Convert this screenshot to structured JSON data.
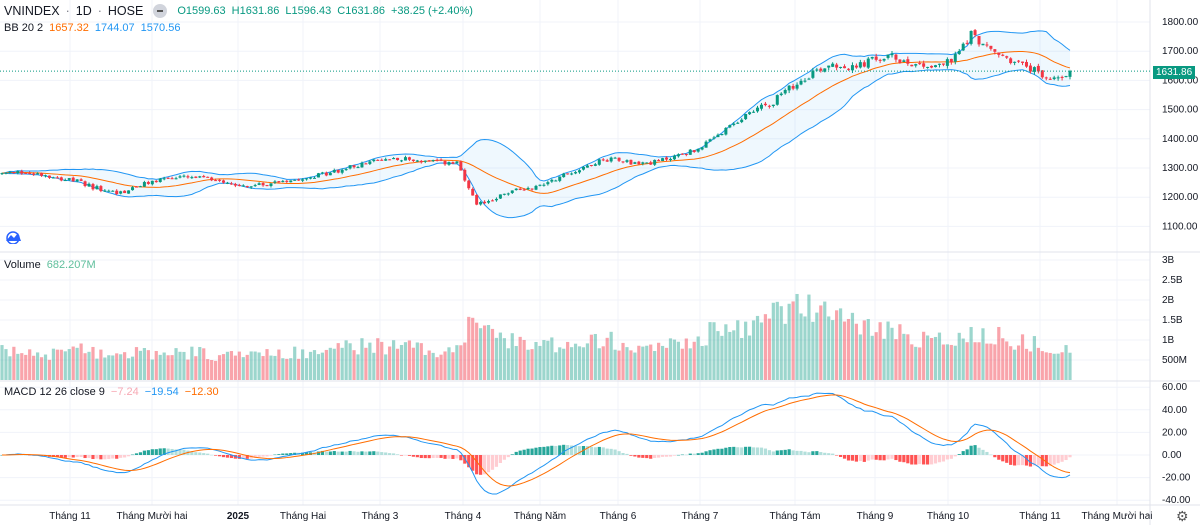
{
  "header": {
    "symbol": "VNINDEX",
    "interval": "1D",
    "exchange": "HOSE",
    "open": "O1599.63",
    "high": "H1631.86",
    "low": "L1596.43",
    "close": "C1631.86",
    "change": "+38.25 (+2.40%)"
  },
  "bb": {
    "label": "BB 20 2",
    "basis": "1657.32",
    "upper": "1744.07",
    "lower": "1570.56"
  },
  "volume": {
    "label": "Volume",
    "value": "682.207M"
  },
  "macd": {
    "label": "MACD 12 26 close 9",
    "hist": "−7.24",
    "macd": "−19.54",
    "signal": "−12.30"
  },
  "last_price_label": "1631.86",
  "colors": {
    "up": "#089981",
    "down": "#f23645",
    "bb_line": "#2196f3",
    "bb_basis": "#ff6d00",
    "macd": "#2196f3",
    "signal": "#ff6d00"
  },
  "chart_data": {
    "type": "candlestick",
    "title": "VNINDEX 1D HOSE",
    "close_keypoints": [
      1280,
      1285,
      1280,
      1265,
      1250,
      1225,
      1215,
      1240,
      1262,
      1268,
      1265,
      1260,
      1240,
      1240,
      1255,
      1265,
      1275,
      1290,
      1310,
      1325,
      1335,
      1325,
      1320,
      1315,
      1170,
      1200,
      1225,
      1235,
      1265,
      1290,
      1320,
      1335,
      1315,
      1320,
      1340,
      1360,
      1400,
      1450,
      1500,
      1530,
      1580,
      1630,
      1660,
      1640,
      1670,
      1680,
      1660,
      1650,
      1665,
      1760,
      1700,
      1670,
      1640,
      1600,
      1631.86
    ],
    "volume_level_billions": [
      0.7,
      0.7,
      0.65,
      0.7,
      0.75,
      0.7,
      0.65,
      0.7,
      0.65,
      0.65,
      0.7,
      0.6,
      0.65,
      0.6,
      0.65,
      0.7,
      0.75,
      0.8,
      0.85,
      0.85,
      0.85,
      0.8,
      0.75,
      0.8,
      1.6,
      1.2,
      0.9,
      0.85,
      0.9,
      1.0,
      1.05,
      1.0,
      0.9,
      0.85,
      0.9,
      1.0,
      1.2,
      1.3,
      1.4,
      1.6,
      1.9,
      1.8,
      1.6,
      1.4,
      1.3,
      1.2,
      1.1,
      1.05,
      1.0,
      1.1,
      1.2,
      1.0,
      0.9,
      0.85,
      0.68
    ],
    "price_axis": {
      "ticks": [
        "1800.00",
        "1700.00",
        "1600.00",
        "1500.00",
        "1400.00",
        "1300.00",
        "1200.00",
        "1100.00"
      ],
      "range": [
        1050,
        1830
      ]
    },
    "volume_axis": {
      "ticks": [
        "3B",
        "2.5B",
        "2B",
        "1.5B",
        "1B",
        "500M"
      ]
    },
    "macd_axis": {
      "ticks": [
        "60.00",
        "40.00",
        "20.00",
        "0.00",
        "-20.00",
        "-40.00"
      ]
    },
    "time_axis": [
      "Tháng 11",
      "Tháng Mười hai",
      "2025",
      "Tháng Hai",
      "Tháng 3",
      "Tháng 4",
      "Tháng Năm",
      "Tháng 6",
      "Tháng 7",
      "Tháng Tám",
      "Tháng 9",
      "Tháng 10",
      "Tháng 11",
      "Tháng Mười hai"
    ]
  }
}
